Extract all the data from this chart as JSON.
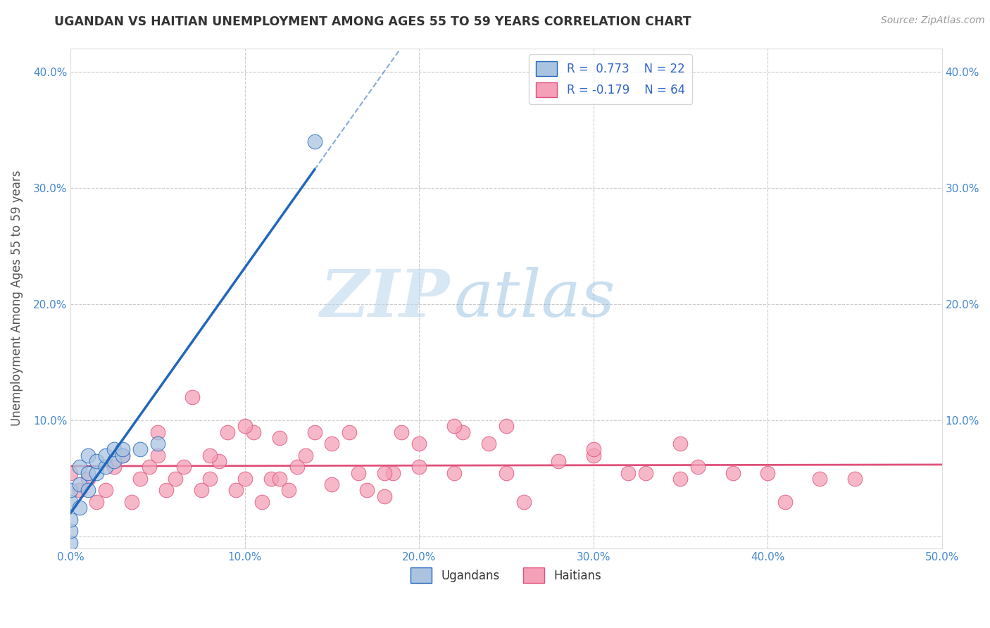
{
  "title": "UGANDAN VS HAITIAN UNEMPLOYMENT AMONG AGES 55 TO 59 YEARS CORRELATION CHART",
  "source": "Source: ZipAtlas.com",
  "ylabel": "Unemployment Among Ages 55 to 59 years",
  "xlim": [
    0.0,
    50.0
  ],
  "ylim": [
    -1.0,
    42.0
  ],
  "xticks": [
    0.0,
    10.0,
    20.0,
    30.0,
    40.0,
    50.0
  ],
  "yticks": [
    0.0,
    10.0,
    20.0,
    30.0,
    40.0
  ],
  "ugandan_R": 0.773,
  "ugandan_N": 22,
  "haitian_R": -0.179,
  "haitian_N": 64,
  "ugandan_color": "#aac4e0",
  "haitian_color": "#f4a0b8",
  "ugandan_line_color": "#2266bb",
  "haitian_line_color": "#e0507a",
  "ugandan_scatter_x": [
    0.0,
    0.0,
    0.0,
    0.0,
    0.0,
    0.5,
    0.5,
    0.5,
    1.0,
    1.0,
    1.0,
    1.5,
    1.5,
    2.0,
    2.0,
    2.5,
    2.5,
    3.0,
    3.0,
    4.0,
    5.0,
    14.0
  ],
  "ugandan_scatter_y": [
    -0.5,
    0.5,
    1.5,
    3.0,
    4.0,
    2.5,
    4.5,
    6.0,
    4.0,
    5.5,
    7.0,
    5.5,
    6.5,
    6.0,
    7.0,
    6.5,
    7.5,
    7.0,
    7.5,
    7.5,
    8.0,
    34.0
  ],
  "haitian_scatter_x": [
    0.0,
    0.5,
    1.0,
    1.5,
    2.0,
    2.5,
    3.0,
    3.5,
    4.0,
    4.5,
    5.0,
    5.5,
    6.0,
    6.5,
    7.0,
    7.5,
    8.0,
    8.5,
    9.0,
    9.5,
    10.0,
    10.5,
    11.0,
    11.5,
    12.0,
    12.5,
    13.0,
    13.5,
    14.0,
    15.0,
    16.0,
    16.5,
    17.0,
    18.0,
    18.5,
    19.0,
    20.0,
    22.0,
    22.5,
    24.0,
    25.0,
    26.0,
    28.0,
    30.0,
    32.0,
    33.0,
    35.0,
    36.0,
    38.0,
    40.0,
    41.0,
    43.0,
    45.0,
    25.0,
    30.0,
    35.0,
    10.0,
    15.0,
    20.0,
    5.0,
    8.0,
    12.0,
    18.0,
    22.0
  ],
  "haitian_scatter_y": [
    5.5,
    4.0,
    5.0,
    3.0,
    4.0,
    6.0,
    7.0,
    3.0,
    5.0,
    6.0,
    7.0,
    4.0,
    5.0,
    6.0,
    12.0,
    4.0,
    5.0,
    6.5,
    9.0,
    4.0,
    5.0,
    9.0,
    3.0,
    5.0,
    8.5,
    4.0,
    6.0,
    7.0,
    9.0,
    8.0,
    9.0,
    5.5,
    4.0,
    3.5,
    5.5,
    9.0,
    6.0,
    5.5,
    9.0,
    8.0,
    5.5,
    3.0,
    6.5,
    7.0,
    5.5,
    5.5,
    5.0,
    6.0,
    5.5,
    5.5,
    3.0,
    5.0,
    5.0,
    9.5,
    7.5,
    8.0,
    9.5,
    4.5,
    8.0,
    9.0,
    7.0,
    5.0,
    5.5,
    9.5
  ],
  "watermark_zip": "ZIP",
  "watermark_atlas": "atlas",
  "background_color": "#ffffff",
  "grid_color": "#cccccc",
  "title_color": "#333333",
  "axis_label_color": "#555555",
  "tick_color_blue": "#4488cc",
  "legend_R_color": "#3366cc"
}
